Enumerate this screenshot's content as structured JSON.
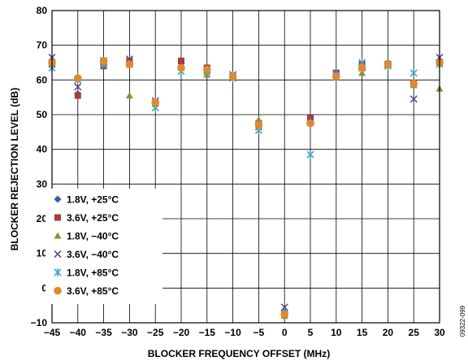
{
  "chart_data": {
    "type": "scatter",
    "xlabel": "BLOCKER FREQUENCY OFFSET (MHz)",
    "ylabel": "BLOCKER REJECTION LEVEL (dB)",
    "xlim": [
      -45,
      30
    ],
    "ylim": [
      -10,
      80
    ],
    "xticks": [
      -45,
      -40,
      -35,
      -30,
      -25,
      -20,
      -15,
      -10,
      -5,
      0,
      5,
      10,
      15,
      20,
      25,
      30
    ],
    "yticks": [
      -10,
      0,
      10,
      20,
      30,
      40,
      50,
      60,
      70,
      80
    ],
    "grid": true,
    "legend_position": "bottom-left",
    "figure_id": "09322-099",
    "x": [
      -45,
      -40,
      -35,
      -30,
      -25,
      -20,
      -15,
      -10,
      -5,
      0,
      5,
      10,
      15,
      20,
      25,
      30
    ],
    "series": [
      {
        "name": "1.8V, +25°C",
        "marker": "diamond",
        "color": "#3b5ba5",
        "values": [
          65.5,
          56,
          64.5,
          65,
          53,
          64,
          63,
          61,
          47,
          -6.5,
          48.5,
          61.5,
          64,
          65,
          58.5,
          65.5
        ]
      },
      {
        "name": "3.6V, +25°C",
        "marker": "square",
        "color": "#b03a3a",
        "values": [
          64.5,
          55.5,
          64,
          65.5,
          53.5,
          65.5,
          63.5,
          61,
          47.5,
          -7.5,
          49,
          62,
          64.5,
          64.5,
          59,
          65
        ]
      },
      {
        "name": "1.8V, −40°C",
        "marker": "triangle",
        "color": "#7a9a3a",
        "values": [
          65,
          60.5,
          65,
          55.5,
          53,
          63.5,
          61.5,
          61.5,
          48.5,
          -8,
          48,
          61.5,
          62,
          65,
          58.5,
          57.5
        ]
      },
      {
        "name": "3.6V, −40°C",
        "marker": "x",
        "color": "#6a4a8e",
        "values": [
          66.5,
          58,
          65.5,
          66,
          54,
          64,
          63,
          61.5,
          46.5,
          -5.5,
          48.5,
          62,
          63.5,
          64.5,
          54.5,
          66.5
        ]
      },
      {
        "name": "1.8V, +85°C",
        "marker": "star",
        "color": "#3fa6c8",
        "values": [
          63.5,
          60,
          64.5,
          64.5,
          52,
          62.5,
          62.5,
          60.5,
          45.5,
          -7,
          38.5,
          61.5,
          65,
          64,
          62,
          64.5
        ]
      },
      {
        "name": "3.6V, +85°C",
        "marker": "circle",
        "color": "#e08a2e",
        "values": [
          65,
          60.5,
          65.5,
          64.5,
          53.5,
          63.5,
          63,
          61,
          47,
          -7.5,
          47.5,
          61,
          63.5,
          64.5,
          59,
          65
        ]
      }
    ]
  }
}
